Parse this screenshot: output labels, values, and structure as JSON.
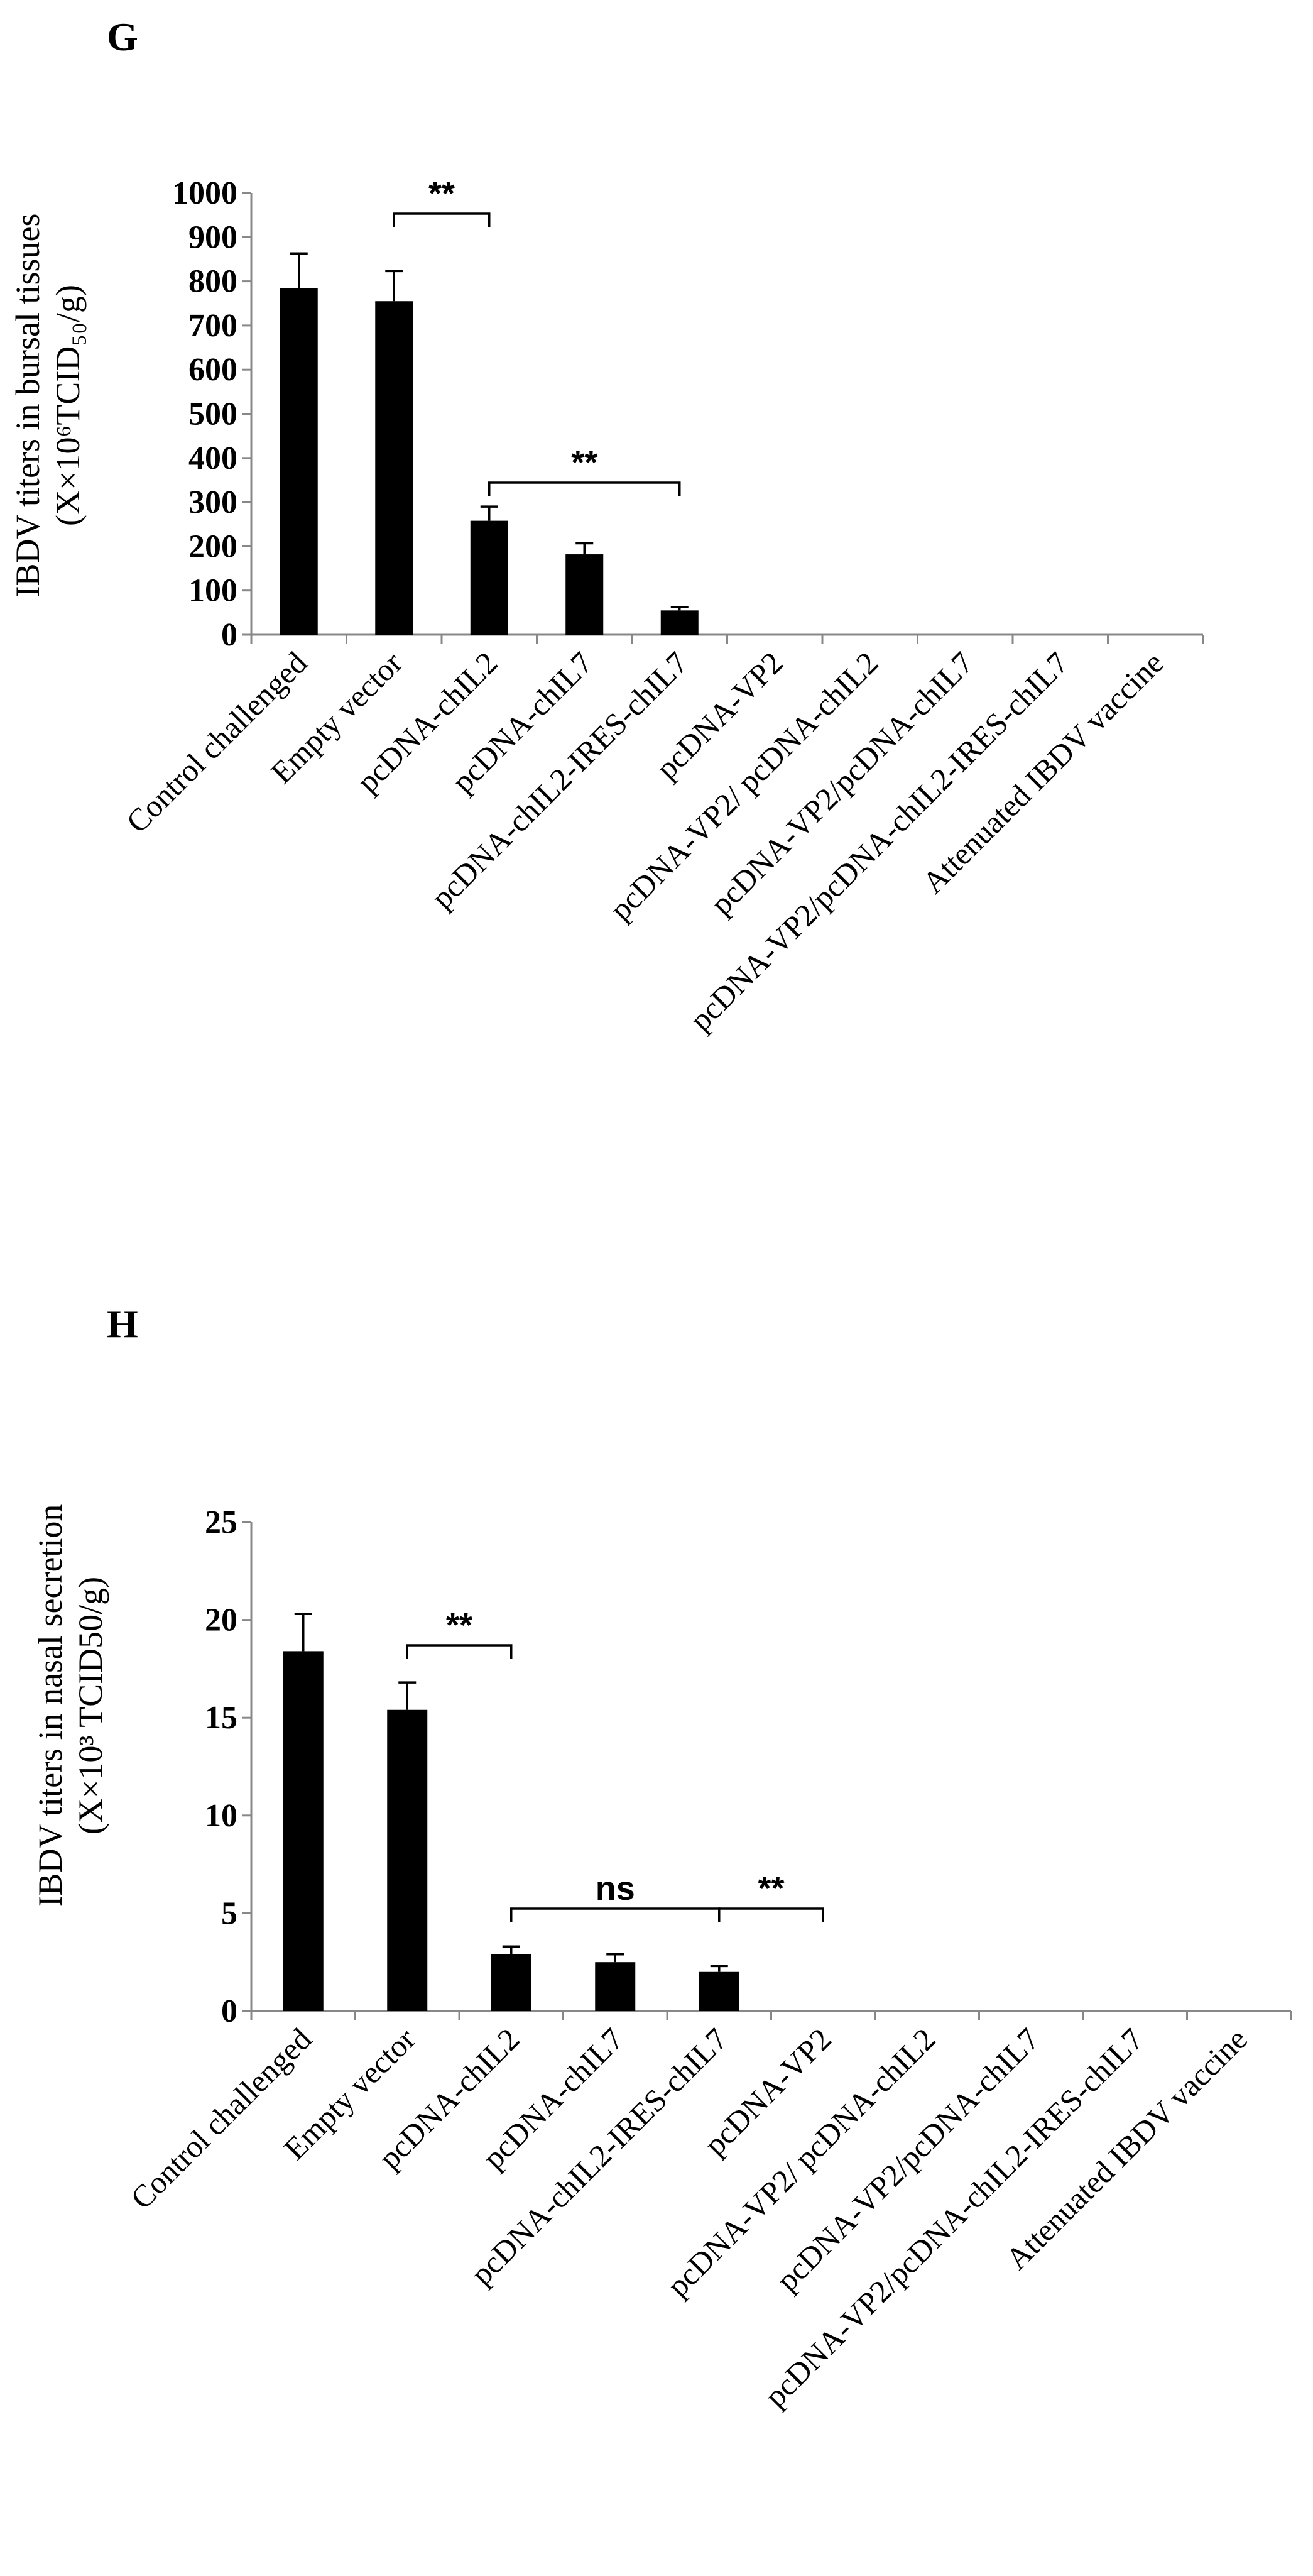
{
  "chart_data": [
    {
      "panel": "G",
      "type": "bar",
      "ylabel_line1": "IBDV titers in bursal tissues",
      "ylabel_line2": "(X×10⁶TCID₅₀/g)",
      "ylim": [
        0,
        1000
      ],
      "yticks": [
        0,
        100,
        200,
        300,
        400,
        500,
        600,
        700,
        800,
        900,
        1000
      ],
      "categories": [
        "Control challenged",
        "Empty vector",
        "pcDNA-chIL2",
        "pcDNA-chIL7",
        "pcDNA-chIL2-IRES-chIL7",
        "pcDNA-VP2",
        "pcDNA-VP2/ pcDNA-chIL2",
        "pcDNA-VP2/pcDNA-chIL7",
        "pcDNA-VP2/pcDNA-chIL2-IRES-chIL7",
        "Attenuated IBDV vaccine"
      ],
      "values": [
        785,
        755,
        258,
        182,
        55,
        0,
        0,
        0,
        0,
        0
      ],
      "errors": [
        78,
        68,
        32,
        25,
        8,
        0,
        0,
        0,
        0,
        0
      ],
      "annotations": [
        {
          "label": "**",
          "from": 1,
          "to": 2
        },
        {
          "label": "**",
          "from": 2,
          "to": 4
        }
      ]
    },
    {
      "panel": "H",
      "type": "bar",
      "ylabel_line1": "IBDV titers in nasal secretion",
      "ylabel_line2": "(X×10³ TCID50/g)",
      "ylim": [
        0,
        25
      ],
      "yticks": [
        0,
        5,
        10,
        15,
        20,
        25
      ],
      "categories": [
        "Control challenged",
        "Empty vector",
        "pcDNA-chIL2",
        "pcDNA-chIL7",
        "pcDNA-chIL2-IRES-chIL7",
        "pcDNA-VP2",
        "pcDNA-VP2/ pcDNA-chIL2",
        "pcDNA-VP2/pcDNA-chIL7",
        "pcDNA-VP2/pcDNA-chIL2-IRES-chIL7",
        "Attenuated IBDV vaccine"
      ],
      "values": [
        18.4,
        15.4,
        2.9,
        2.5,
        2.0,
        0,
        0,
        0,
        0,
        0
      ],
      "errors": [
        1.9,
        1.4,
        0.4,
        0.4,
        0.3,
        0,
        0,
        0,
        0,
        0
      ],
      "annotations": [
        {
          "label": "**",
          "from": 1,
          "to": 2
        },
        {
          "label": "ns",
          "from": 2,
          "to": 4
        },
        {
          "label": "**",
          "from": 4,
          "to": 5
        }
      ]
    }
  ]
}
